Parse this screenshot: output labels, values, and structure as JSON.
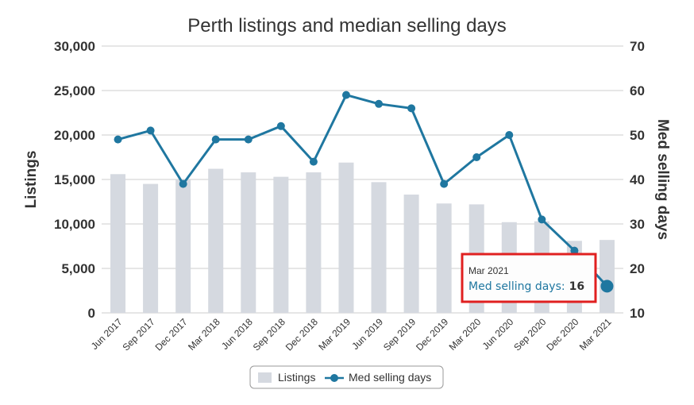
{
  "chart_data": {
    "type": "bar+line",
    "title": "Perth listings and median selling days",
    "categories": [
      "Jun 2017",
      "Sep 2017",
      "Dec 2017",
      "Mar 2018",
      "Jun 2018",
      "Sep 2018",
      "Dec 2018",
      "Mar 2019",
      "Jun 2019",
      "Sep 2019",
      "Dec 2019",
      "Mar 2020",
      "Jun 2020",
      "Sep 2020",
      "Dec 2020",
      "Mar 2021"
    ],
    "series": [
      {
        "name": "Listings",
        "type": "bar",
        "axis": "left",
        "color": "#d5d9e0",
        "values": [
          15600,
          14500,
          15000,
          16200,
          15800,
          15300,
          15800,
          16900,
          14700,
          13300,
          12300,
          12200,
          10200,
          10300,
          8100,
          8200
        ]
      },
      {
        "name": "Med selling days",
        "type": "line",
        "axis": "right",
        "color": "#1f77a0",
        "values": [
          49,
          51,
          39,
          49,
          49,
          52,
          44,
          59,
          57,
          56,
          39,
          45,
          50,
          31,
          24,
          16
        ]
      }
    ],
    "y_left": {
      "label": "Listings",
      "min": 0,
      "max": 30000,
      "ticks": [
        "0",
        "5,000",
        "10,000",
        "15,000",
        "20,000",
        "25,000",
        "30,000"
      ]
    },
    "y_right": {
      "label": "Med selling days",
      "min": 10,
      "max": 70,
      "ticks": [
        "10",
        "20",
        "30",
        "40",
        "50",
        "60",
        "70"
      ]
    },
    "grid": true,
    "legend": "bottom-center",
    "tooltip": {
      "header": "Mar 2021",
      "label": "Med selling days:",
      "value": "16",
      "category_index": 15
    }
  }
}
